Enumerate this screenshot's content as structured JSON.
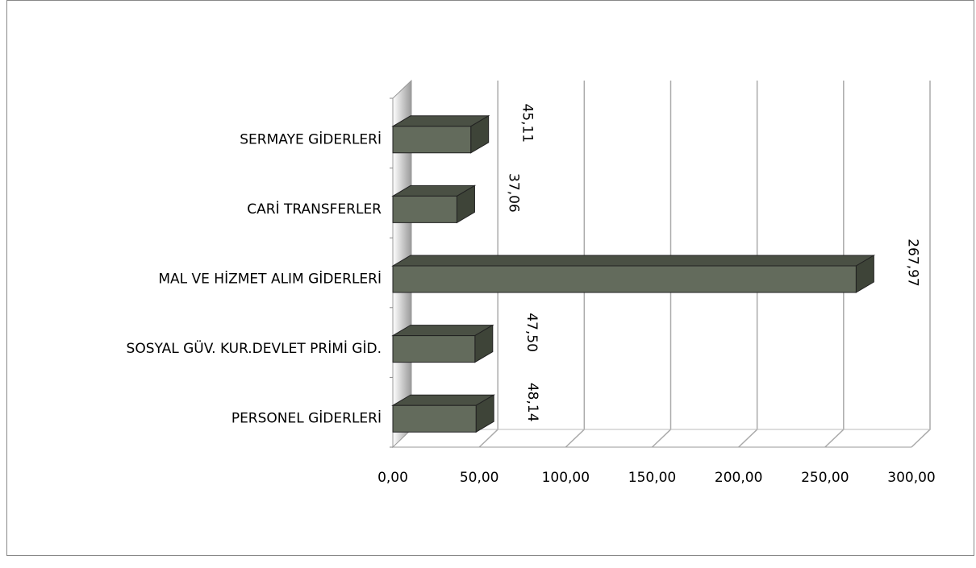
{
  "chart_data": {
    "type": "bar3d_horizontal",
    "categories": [
      "PERSONEL GİDERLERİ",
      "SOSYAL GÜV. KUR.DEVLET PRİMİ GİD.",
      "MAL VE HİZMET ALIM GİDERLERİ",
      "CARİ TRANSFERLER",
      "SERMAYE GİDERLERİ"
    ],
    "values": [
      48.14,
      47.5,
      267.97,
      37.06,
      45.11
    ],
    "value_labels": [
      "48,14",
      "47,50",
      "267,97",
      "37,06",
      "45,11"
    ],
    "color": "#636b5c",
    "xlim": [
      0,
      300
    ],
    "xticks": [
      {
        "value": 0,
        "label": "0,00"
      },
      {
        "value": 50,
        "label": "50,00"
      },
      {
        "value": 100,
        "label": "100,00"
      },
      {
        "value": 150,
        "label": "150,00"
      },
      {
        "value": 200,
        "label": "200,00"
      },
      {
        "value": 250,
        "label": "250,00"
      },
      {
        "value": 300,
        "label": "300,00"
      }
    ],
    "grid": true
  }
}
